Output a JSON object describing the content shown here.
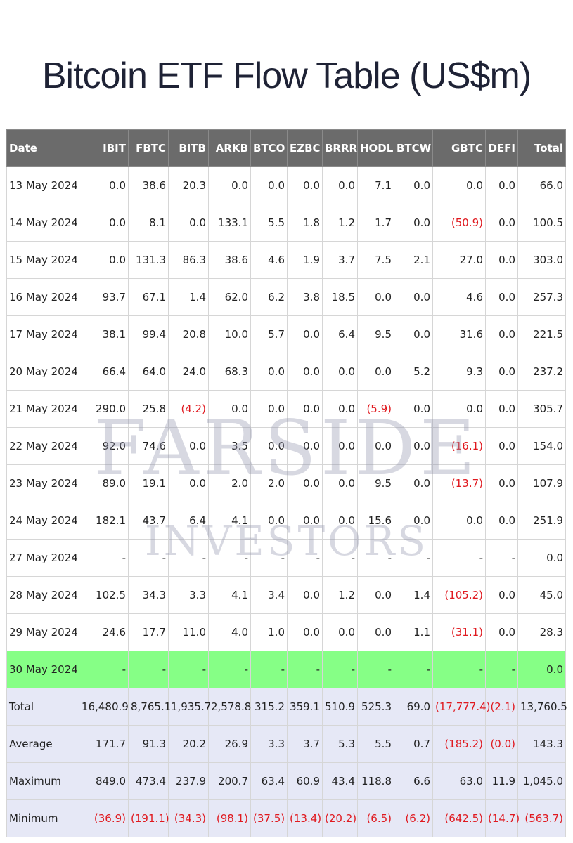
{
  "title": "Bitcoin ETF Flow Table (US$m)",
  "watermark": {
    "line1": "FARSIDE",
    "line2": "INVESTORS"
  },
  "colors": {
    "header_bg": "#6b6b6b",
    "highlight_row": "#86ff86",
    "summary_row": "#e6e8f6",
    "negative_text": "#e0191f"
  },
  "columns": [
    "Date",
    "IBIT",
    "FBTC",
    "BITB",
    "ARKB",
    "BTCO",
    "EZBC",
    "BRRR",
    "HODL",
    "BTCW",
    "GBTC",
    "DEFI",
    "Total"
  ],
  "rows": [
    [
      "13 May 2024",
      "0.0",
      "38.6",
      "20.3",
      "0.0",
      "0.0",
      "0.0",
      "0.0",
      "7.1",
      "0.0",
      "0.0",
      "0.0",
      "66.0"
    ],
    [
      "14 May 2024",
      "0.0",
      "8.1",
      "0.0",
      "133.1",
      "5.5",
      "1.8",
      "1.2",
      "1.7",
      "0.0",
      "(50.9)",
      "0.0",
      "100.5"
    ],
    [
      "15 May 2024",
      "0.0",
      "131.3",
      "86.3",
      "38.6",
      "4.6",
      "1.9",
      "3.7",
      "7.5",
      "2.1",
      "27.0",
      "0.0",
      "303.0"
    ],
    [
      "16 May 2024",
      "93.7",
      "67.1",
      "1.4",
      "62.0",
      "6.2",
      "3.8",
      "18.5",
      "0.0",
      "0.0",
      "4.6",
      "0.0",
      "257.3"
    ],
    [
      "17 May 2024",
      "38.1",
      "99.4",
      "20.8",
      "10.0",
      "5.7",
      "0.0",
      "6.4",
      "9.5",
      "0.0",
      "31.6",
      "0.0",
      "221.5"
    ],
    [
      "20 May 2024",
      "66.4",
      "64.0",
      "24.0",
      "68.3",
      "0.0",
      "0.0",
      "0.0",
      "0.0",
      "5.2",
      "9.3",
      "0.0",
      "237.2"
    ],
    [
      "21 May 2024",
      "290.0",
      "25.8",
      "(4.2)",
      "0.0",
      "0.0",
      "0.0",
      "0.0",
      "(5.9)",
      "0.0",
      "0.0",
      "0.0",
      "305.7"
    ],
    [
      "22 May 2024",
      "92.0",
      "74.6",
      "0.0",
      "3.5",
      "0.0",
      "0.0",
      "0.0",
      "0.0",
      "0.0",
      "(16.1)",
      "0.0",
      "154.0"
    ],
    [
      "23 May 2024",
      "89.0",
      "19.1",
      "0.0",
      "2.0",
      "2.0",
      "0.0",
      "0.0",
      "9.5",
      "0.0",
      "(13.7)",
      "0.0",
      "107.9"
    ],
    [
      "24 May 2024",
      "182.1",
      "43.7",
      "6.4",
      "4.1",
      "0.0",
      "0.0",
      "0.0",
      "15.6",
      "0.0",
      "0.0",
      "0.0",
      "251.9"
    ],
    [
      "27 May 2024",
      "-",
      "-",
      "-",
      "-",
      "-",
      "-",
      "-",
      "-",
      "-",
      "-",
      "-",
      "0.0"
    ],
    [
      "28 May 2024",
      "102.5",
      "34.3",
      "3.3",
      "4.1",
      "3.4",
      "0.0",
      "1.2",
      "0.0",
      "1.4",
      "(105.2)",
      "0.0",
      "45.0"
    ],
    [
      "29 May 2024",
      "24.6",
      "17.7",
      "11.0",
      "4.0",
      "1.0",
      "0.0",
      "0.0",
      "0.0",
      "1.1",
      "(31.1)",
      "0.0",
      "28.3"
    ],
    [
      "30 May 2024",
      "-",
      "-",
      "-",
      "-",
      "-",
      "-",
      "-",
      "-",
      "-",
      "-",
      "-",
      "0.0"
    ]
  ],
  "highlight_row_index": 13,
  "summary_rows": [
    [
      "Total",
      "16,480.9",
      "8,765.1",
      "1,935.7",
      "2,578.8",
      "315.2",
      "359.1",
      "510.9",
      "525.3",
      "69.0",
      "(17,777.4)",
      "(2.1)",
      "13,760.5"
    ],
    [
      "Average",
      "171.7",
      "91.3",
      "20.2",
      "26.9",
      "3.3",
      "3.7",
      "5.3",
      "5.5",
      "0.7",
      "(185.2)",
      "(0.0)",
      "143.3"
    ],
    [
      "Maximum",
      "849.0",
      "473.4",
      "237.9",
      "200.7",
      "63.4",
      "60.9",
      "43.4",
      "118.8",
      "6.6",
      "63.0",
      "11.9",
      "1,045.0"
    ],
    [
      "Minimum",
      "(36.9)",
      "(191.1)",
      "(34.3)",
      "(98.1)",
      "(37.5)",
      "(13.4)",
      "(20.2)",
      "(6.5)",
      "(6.2)",
      "(642.5)",
      "(14.7)",
      "(563.7)"
    ]
  ]
}
